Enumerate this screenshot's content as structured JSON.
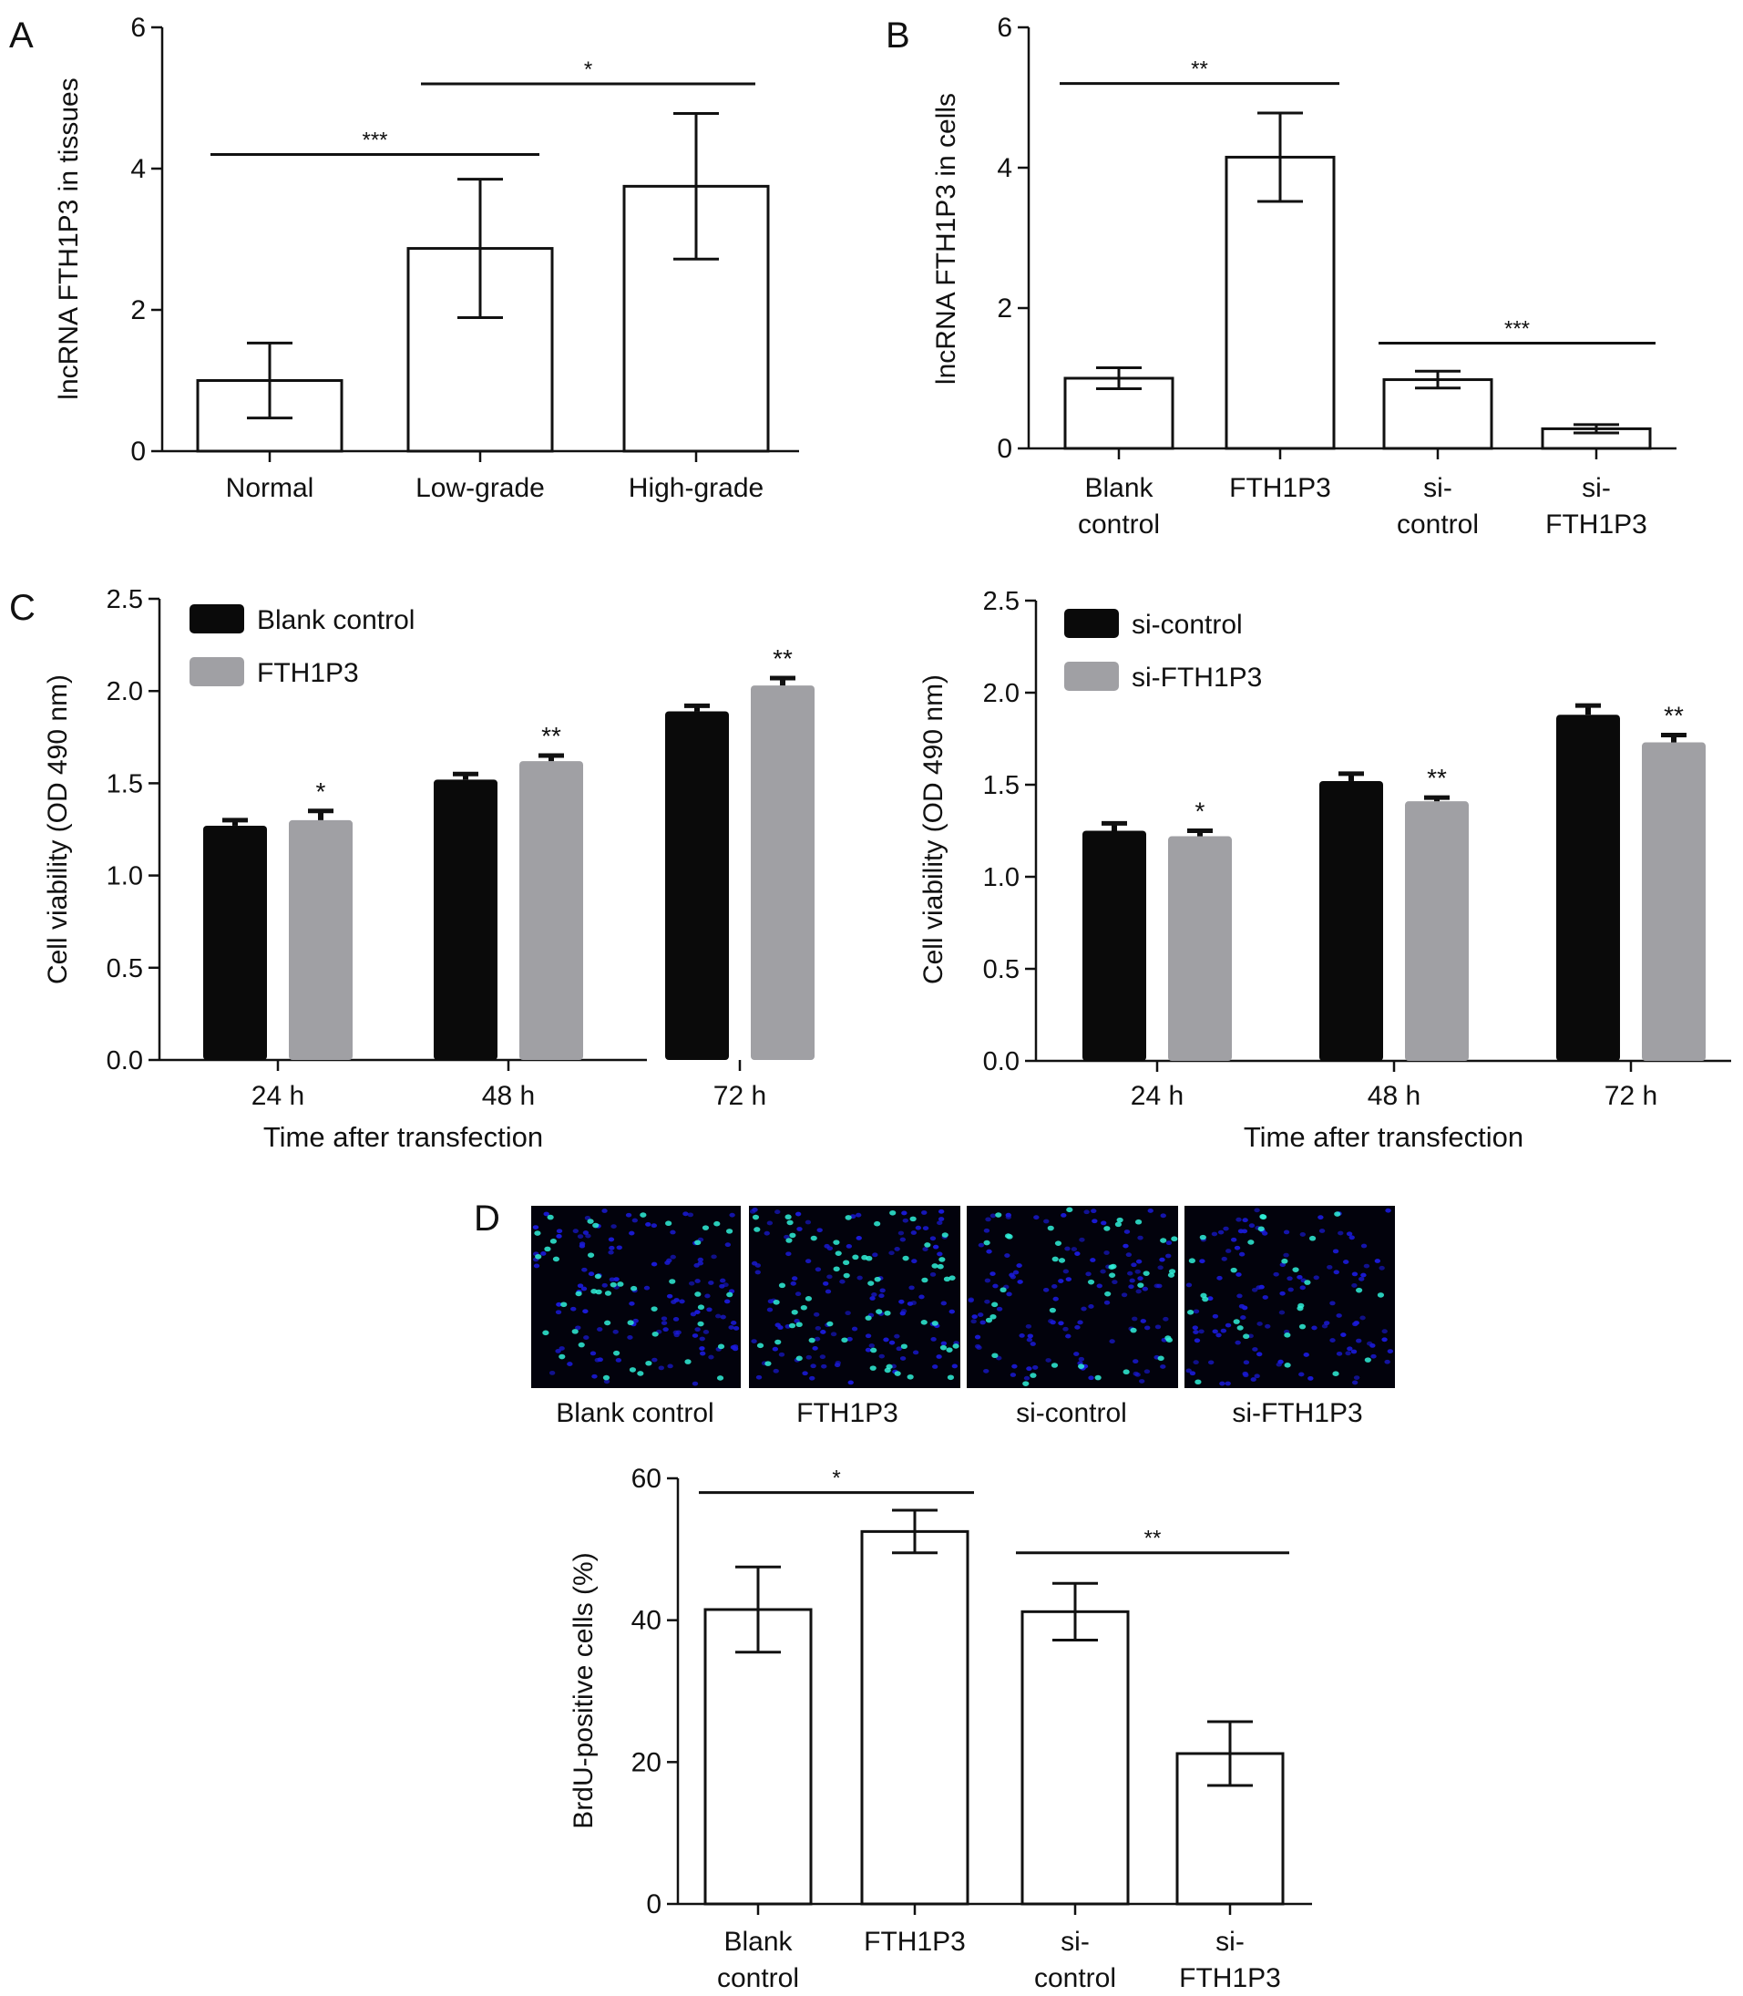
{
  "figure": {
    "panel_labels": [
      "A",
      "B",
      "C",
      "D"
    ],
    "micrograph_labels": [
      "Blank control",
      "FTH1P3",
      "si-control",
      "si-FTH1P3"
    ],
    "colors": {
      "axis": "#111111",
      "bar_dark": "#0a0a0a",
      "bar_gray": "#a0a0a4",
      "micro_bg": "#02020c",
      "nuclei_blue": "#1a1ad8",
      "nuclei_cyan": "#30f0d8"
    },
    "micrograph_brdu_counts": [
      45,
      60,
      40,
      28
    ]
  },
  "chart_data": [
    {
      "id": "A",
      "type": "bar",
      "ylabel": "lncRNA FTH1P3 in tissues",
      "xlabel": "",
      "ylim": [
        0,
        6
      ],
      "yticks": [
        "0",
        "2",
        "4",
        "6"
      ],
      "ytick_values": [
        0,
        2,
        4,
        6
      ],
      "categories": [
        [
          "Normal"
        ],
        [
          "Low-grade"
        ],
        [
          "High-grade"
        ]
      ],
      "values": [
        1.0,
        2.87,
        3.75
      ],
      "errors": [
        0.53,
        0.98,
        1.03
      ],
      "significance": [
        {
          "from": 0,
          "to": 1,
          "label": "***",
          "y": 4.2
        },
        {
          "from": 1,
          "to": 2,
          "label": "*",
          "y": 5.2
        }
      ]
    },
    {
      "id": "B",
      "type": "bar",
      "ylabel": "lncRNA FTH1P3 in cells",
      "xlabel": "",
      "ylim": [
        0,
        6
      ],
      "yticks": [
        "0",
        "2",
        "4",
        "6"
      ],
      "ytick_values": [
        0,
        2,
        4,
        6
      ],
      "categories": [
        [
          "Blank",
          "control"
        ],
        [
          "FTH1P3"
        ],
        [
          "si-",
          "control"
        ],
        [
          "si-",
          "FTH1P3"
        ]
      ],
      "values": [
        1.0,
        4.15,
        0.98,
        0.28
      ],
      "errors": [
        0.15,
        0.63,
        0.12,
        0.06
      ],
      "significance": [
        {
          "from": 0,
          "to": 1,
          "label": "**",
          "y": 5.2
        },
        {
          "from": 2,
          "to": 3,
          "label": "***",
          "y": 1.5
        }
      ]
    },
    {
      "id": "C-left",
      "type": "bar",
      "ylabel": "Cell viability (OD 490 nm)",
      "xlabel": "Time after transfection",
      "ylim": [
        0,
        2.5
      ],
      "yticks": [
        "0.0",
        "0.5",
        "1.0",
        "1.5",
        "2.0",
        "2.5"
      ],
      "ytick_values": [
        0,
        0.5,
        1.0,
        1.5,
        2.0,
        2.5
      ],
      "categories": [
        "24 h",
        "48 h",
        "72 h"
      ],
      "series": [
        {
          "name": "Blank control",
          "values": [
            1.27,
            1.52,
            1.89
          ],
          "errors": [
            0.03,
            0.03,
            0.03
          ]
        },
        {
          "name": "FTH1P3",
          "values": [
            1.3,
            1.62,
            2.03
          ],
          "errors": [
            0.05,
            0.03,
            0.04
          ]
        }
      ],
      "significance_labels": [
        "*",
        "**",
        "**"
      ],
      "legend_position": "top-left"
    },
    {
      "id": "C-right",
      "type": "bar",
      "ylabel": "Cell viability (OD 490 nm)",
      "xlabel": "Time after transfection",
      "ylim": [
        0,
        2.5
      ],
      "yticks": [
        "0.0",
        "0.5",
        "1.0",
        "1.5",
        "2.0",
        "2.5"
      ],
      "ytick_values": [
        0,
        0.5,
        1.0,
        1.5,
        2.0,
        2.5
      ],
      "categories": [
        "24 h",
        "48 h",
        "72 h"
      ],
      "series": [
        {
          "name": "si-control",
          "values": [
            1.25,
            1.52,
            1.88
          ],
          "errors": [
            0.04,
            0.04,
            0.05
          ]
        },
        {
          "name": "si-FTH1P3",
          "values": [
            1.22,
            1.41,
            1.73
          ],
          "errors": [
            0.03,
            0.02,
            0.04
          ]
        }
      ],
      "significance_labels": [
        "*",
        "**",
        "**"
      ],
      "legend_position": "top-left"
    },
    {
      "id": "D",
      "type": "bar",
      "ylabel": "BrdU-positive cells (%)",
      "xlabel": "",
      "ylim": [
        0,
        60
      ],
      "yticks": [
        "0",
        "20",
        "40",
        "60"
      ],
      "ytick_values": [
        0,
        20,
        40,
        60
      ],
      "categories": [
        [
          "Blank",
          "control"
        ],
        [
          "FTH1P3"
        ],
        [
          "si-",
          "control"
        ],
        [
          "si-",
          "FTH1P3"
        ]
      ],
      "values": [
        41.5,
        52.5,
        41.2,
        21.2
      ],
      "errors": [
        6.0,
        3.0,
        4.0,
        4.5
      ],
      "significance": [
        {
          "from": 0,
          "to": 1,
          "label": "*",
          "y": 58.0
        },
        {
          "from": 2,
          "to": 3,
          "label": "**",
          "y": 49.5
        }
      ]
    }
  ]
}
